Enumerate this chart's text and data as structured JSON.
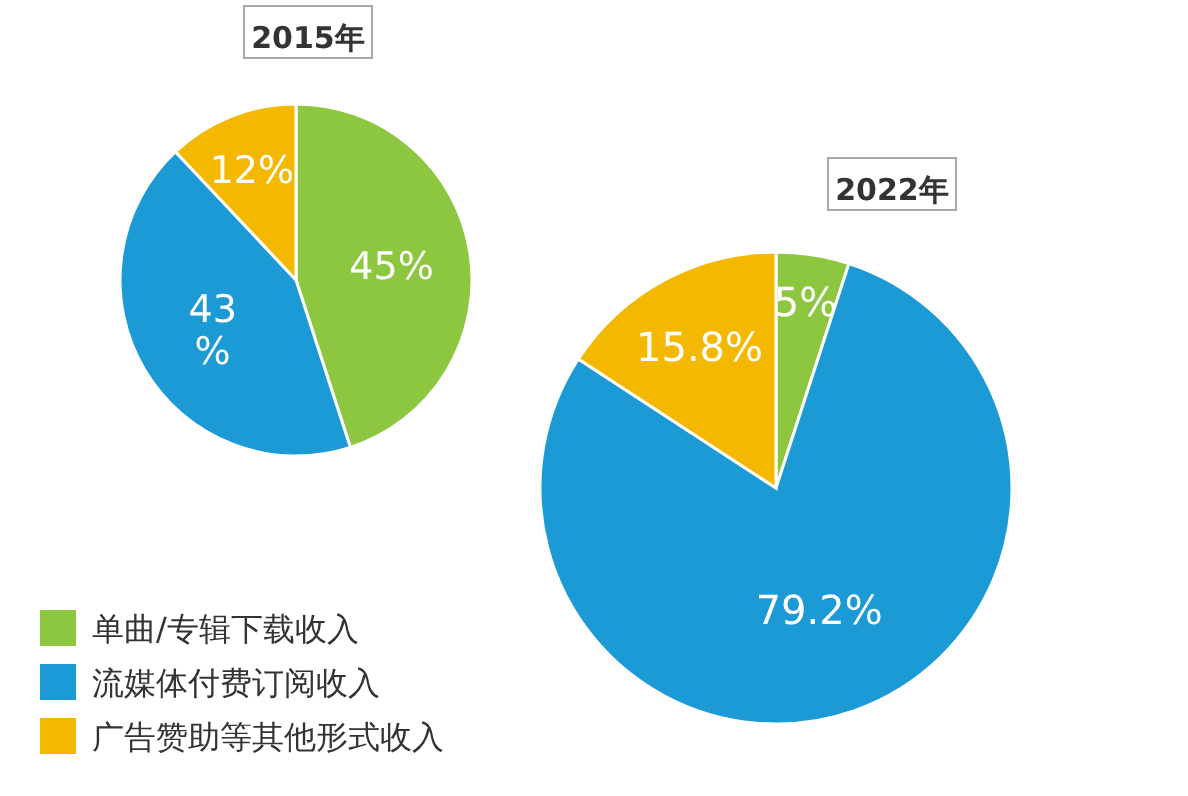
{
  "chart_data": [
    {
      "type": "pie",
      "title": "2015年",
      "categories": [
        "单曲/专辑下载收入",
        "流媒体付费订阅收入",
        "广告赞助等其他形式收入"
      ],
      "values": [
        45,
        43,
        12
      ],
      "colors": [
        "#8dc63f",
        "#1b9ad6",
        "#f5b800"
      ],
      "value_labels": [
        "45%",
        "43 %",
        "12%"
      ],
      "legend": "bottom left"
    },
    {
      "type": "pie",
      "title": "2022年",
      "categories": [
        null,
        null,
        null
      ],
      "values": [
        5,
        79.2,
        15.8
      ],
      "colors": [
        "#8dc63f",
        "#1b9ad6",
        "#f5b800"
      ],
      "value_labels": [
        "5%",
        "79.2%",
        "15.8%"
      ]
    }
  ]
}
